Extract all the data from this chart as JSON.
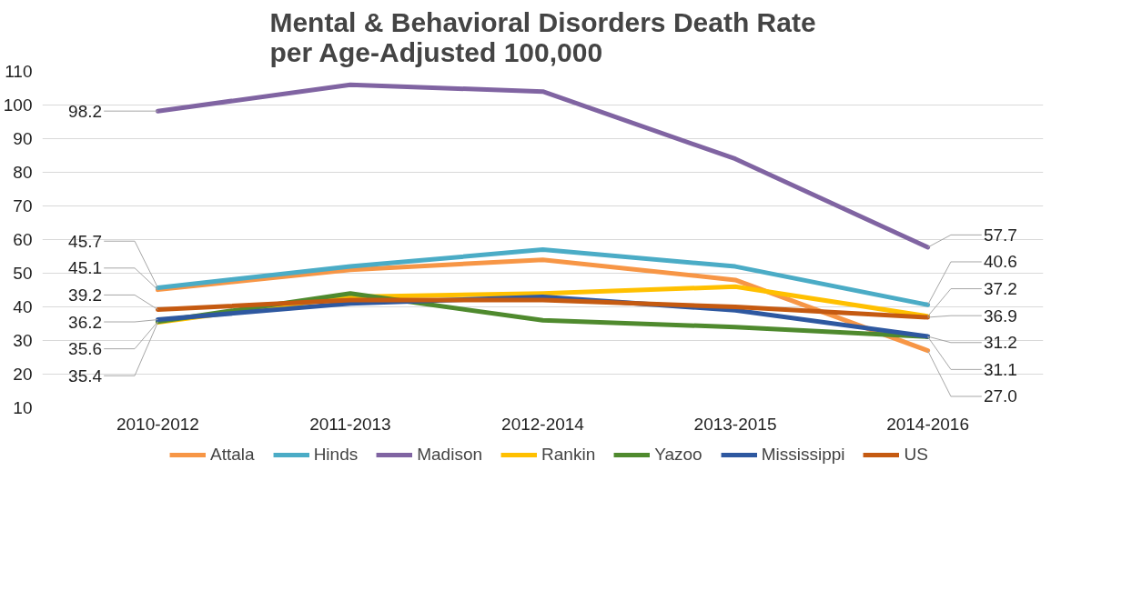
{
  "chart_data": {
    "type": "line",
    "title": "Mental & Behavioral Disorders Death Rate\nper Age-Adjusted 100,000",
    "categories": [
      "2010-2012",
      "2011-2013",
      "2012-2014",
      "2013-2015",
      "2014-2016"
    ],
    "series": [
      {
        "name": "Attala",
        "color": "#f79646",
        "values": [
          45.1,
          51,
          54,
          48,
          27.0
        ],
        "value_labels": [
          "45.1",
          null,
          null,
          null,
          "27.0"
        ]
      },
      {
        "name": "Hinds",
        "color": "#4bacc6",
        "values": [
          45.7,
          52,
          57,
          52,
          40.6
        ],
        "value_labels": [
          "45.7",
          null,
          null,
          null,
          "40.6"
        ]
      },
      {
        "name": "Madison",
        "color": "#8064a2",
        "values": [
          98.2,
          106,
          104,
          84,
          57.7
        ],
        "value_labels": [
          "98.2",
          null,
          null,
          null,
          "57.7"
        ]
      },
      {
        "name": "Rankin",
        "color": "#ffc000",
        "values": [
          35.4,
          43,
          44,
          46,
          37.2
        ],
        "value_labels": [
          "35.4",
          null,
          null,
          null,
          "37.2"
        ]
      },
      {
        "name": "Yazoo",
        "color": "#4f8a2e",
        "values": [
          35.6,
          44,
          36,
          34,
          31.1
        ],
        "value_labels": [
          "35.6",
          null,
          null,
          null,
          "31.1"
        ]
      },
      {
        "name": "Mississippi",
        "color": "#2e58a0",
        "values": [
          36.2,
          41,
          43,
          39,
          31.2
        ],
        "value_labels": [
          "36.2",
          null,
          null,
          null,
          "31.2"
        ]
      },
      {
        "name": "US",
        "color": "#c55a11",
        "values": [
          39.2,
          42,
          42,
          40,
          36.9
        ],
        "value_labels": [
          "39.2",
          null,
          null,
          null,
          "36.9"
        ]
      }
    ],
    "ylim": [
      10,
      110
    ],
    "yticks": [
      10,
      20,
      30,
      40,
      50,
      60,
      70,
      80,
      90,
      100,
      110
    ],
    "grid": "y",
    "legend": "bottom",
    "marker": "none",
    "line_style": "solid"
  }
}
